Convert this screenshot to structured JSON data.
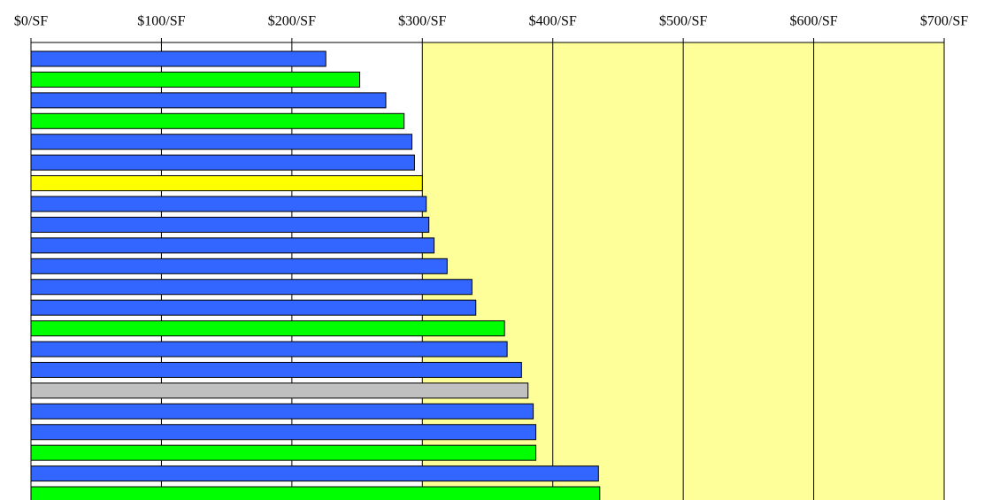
{
  "chart_data": {
    "type": "bar",
    "orientation": "horizontal",
    "categories": [
      null,
      null,
      null,
      null,
      null,
      null,
      null,
      null,
      null,
      null,
      null,
      null,
      null,
      null,
      null,
      null,
      null,
      null,
      null,
      null,
      null,
      null
    ],
    "values": [
      226,
      252,
      272,
      286,
      292,
      294,
      300,
      303,
      305,
      309,
      319,
      338,
      341,
      363,
      365,
      376,
      381,
      385,
      387,
      387,
      435,
      436
    ],
    "colors": [
      "#3366ff",
      "#00ff00",
      "#3366ff",
      "#00ff00",
      "#3366ff",
      "#3366ff",
      "#ffff00",
      "#3366ff",
      "#3366ff",
      "#3366ff",
      "#3366ff",
      "#3366ff",
      "#3366ff",
      "#00ff00",
      "#3366ff",
      "#3366ff",
      "#c0c0c0",
      "#3366ff",
      "#3366ff",
      "#00ff00",
      "#3366ff",
      "#00ff00"
    ],
    "xlim": [
      0,
      700
    ],
    "xticks": [
      {
        "value": 0,
        "label": "$0/SF"
      },
      {
        "value": 100,
        "label": "$100/SF"
      },
      {
        "value": 200,
        "label": "$200/SF"
      },
      {
        "value": 300,
        "label": "$300/SF"
      },
      {
        "value": 400,
        "label": "$400/SF"
      },
      {
        "value": 500,
        "label": "$500/SF"
      },
      {
        "value": 600,
        "label": "$600/SF"
      },
      {
        "value": 700,
        "label": "$700/SF"
      }
    ],
    "grid": true
  }
}
